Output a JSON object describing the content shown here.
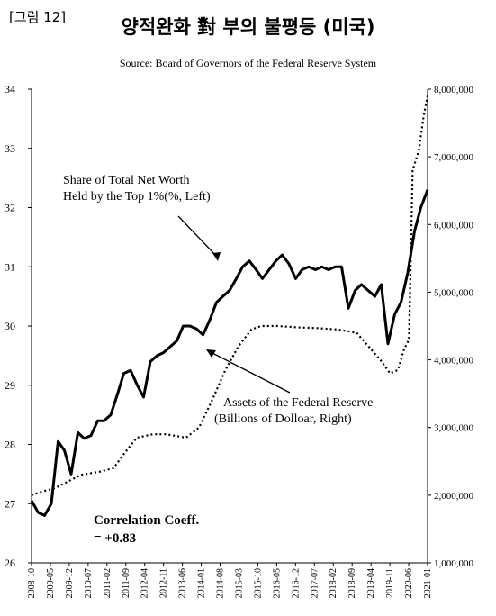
{
  "figure_tag": "[그림 12]",
  "chart_data": {
    "type": "line",
    "title": "양적완화 對 부의 불평등 (미국)",
    "subtitle": "Source: Board of Governors of the Federal Reserve System",
    "y_left": {
      "min": 26,
      "max": 34,
      "ticks": [
        "26",
        "27",
        "28",
        "29",
        "30",
        "31",
        "32",
        "33",
        "34"
      ]
    },
    "y_right": {
      "min": 1000000,
      "max": 8000000,
      "ticks": [
        "1,000,000",
        "2,000,000",
        "3,000,000",
        "4,000,000",
        "5,000,000",
        "6,000,000",
        "7,000,000",
        "8,000,000"
      ]
    },
    "x_ticks": [
      "2008-10",
      "2009-05",
      "2009-12",
      "2010-07",
      "2011-02",
      "2011-09",
      "2012-04",
      "2012-11",
      "2013-06",
      "2014-01",
      "2014-08",
      "2015-03",
      "2015-10",
      "2016-05",
      "2016-12",
      "2017-07",
      "2018-02",
      "2018-09",
      "2019-04",
      "2019-11",
      "2020-06",
      "2021-01"
    ],
    "series": [
      {
        "name": "Share of Total Net Worth Held by the Top 1%(%, Left)",
        "axis": "left",
        "style": "solid",
        "points": [
          [
            2008.75,
            27.05
          ],
          [
            2008.92,
            26.85
          ],
          [
            2009.08,
            26.8
          ],
          [
            2009.25,
            27.0
          ],
          [
            2009.42,
            28.05
          ],
          [
            2009.58,
            27.9
          ],
          [
            2009.75,
            27.5
          ],
          [
            2009.92,
            28.2
          ],
          [
            2010.08,
            28.1
          ],
          [
            2010.25,
            28.15
          ],
          [
            2010.42,
            28.4
          ],
          [
            2010.58,
            28.4
          ],
          [
            2010.75,
            28.5
          ],
          [
            2010.92,
            28.85
          ],
          [
            2011.08,
            29.2
          ],
          [
            2011.25,
            29.25
          ],
          [
            2011.42,
            29.0
          ],
          [
            2011.58,
            28.8
          ],
          [
            2011.75,
            29.4
          ],
          [
            2011.92,
            29.5
          ],
          [
            2012.08,
            29.55
          ],
          [
            2012.25,
            29.65
          ],
          [
            2012.42,
            29.75
          ],
          [
            2012.58,
            30.0
          ],
          [
            2012.75,
            30.0
          ],
          [
            2012.92,
            29.95
          ],
          [
            2013.08,
            29.85
          ],
          [
            2013.25,
            30.1
          ],
          [
            2013.42,
            30.4
          ],
          [
            2013.58,
            30.5
          ],
          [
            2013.75,
            30.6
          ],
          [
            2013.92,
            30.8
          ],
          [
            2014.08,
            31.0
          ],
          [
            2014.25,
            31.1
          ],
          [
            2014.42,
            30.95
          ],
          [
            2014.58,
            30.8
          ],
          [
            2014.75,
            30.95
          ],
          [
            2014.92,
            31.1
          ],
          [
            2015.08,
            31.2
          ],
          [
            2015.25,
            31.05
          ],
          [
            2015.42,
            30.8
          ],
          [
            2015.58,
            30.95
          ],
          [
            2015.75,
            31.0
          ],
          [
            2015.92,
            30.95
          ],
          [
            2016.08,
            31.0
          ],
          [
            2016.25,
            30.95
          ],
          [
            2016.42,
            31.0
          ],
          [
            2016.58,
            31.0
          ],
          [
            2016.75,
            30.3
          ],
          [
            2016.92,
            30.6
          ],
          [
            2017.08,
            30.7
          ],
          [
            2017.25,
            30.6
          ],
          [
            2017.42,
            30.5
          ],
          [
            2017.58,
            30.7
          ],
          [
            2017.75,
            29.7
          ],
          [
            2017.92,
            30.2
          ],
          [
            2018.08,
            30.4
          ],
          [
            2018.25,
            30.9
          ],
          [
            2018.42,
            31.6
          ],
          [
            2018.58,
            32.0
          ],
          [
            2018.75,
            32.3
          ]
        ]
      },
      {
        "name": "Assets of the Federal Reserve (Billions of Dolloar, Right)",
        "axis": "right",
        "style": "dotted",
        "points": [
          [
            2008.75,
            2000000
          ],
          [
            2009.0,
            2050000
          ],
          [
            2009.33,
            2100000
          ],
          [
            2009.67,
            2200000
          ],
          [
            2010.0,
            2300000
          ],
          [
            2010.5,
            2350000
          ],
          [
            2010.83,
            2400000
          ],
          [
            2011.08,
            2600000
          ],
          [
            2011.42,
            2850000
          ],
          [
            2011.83,
            2900000
          ],
          [
            2012.17,
            2900000
          ],
          [
            2012.67,
            2850000
          ],
          [
            2013.0,
            3000000
          ],
          [
            2013.33,
            3400000
          ],
          [
            2013.67,
            3850000
          ],
          [
            2014.0,
            4200000
          ],
          [
            2014.33,
            4450000
          ],
          [
            2014.58,
            4500000
          ],
          [
            2015.0,
            4500000
          ],
          [
            2015.5,
            4480000
          ],
          [
            2016.0,
            4470000
          ],
          [
            2016.5,
            4450000
          ],
          [
            2017.0,
            4400000
          ],
          [
            2017.3,
            4200000
          ],
          [
            2017.6,
            4000000
          ],
          [
            2017.85,
            3800000
          ],
          [
            2018.05,
            3850000
          ],
          [
            2018.2,
            4150000
          ],
          [
            2018.33,
            4300000
          ],
          [
            2018.42,
            6800000
          ],
          [
            2018.58,
            7100000
          ],
          [
            2018.7,
            7600000
          ],
          [
            2018.8,
            7900000
          ]
        ]
      }
    ],
    "annotations": {
      "top1_line1": "Share of Total Net Worth",
      "top1_line2": "Held by the Top 1%(%, Left)",
      "fed_line1": "Assets of the Federal Reserve",
      "fed_line2": "(Billions of Dolloar, Right)",
      "corr_line1": "Correlation Coeff.",
      "corr_line2": "= +0.83"
    },
    "grid": false,
    "legend": "none"
  }
}
